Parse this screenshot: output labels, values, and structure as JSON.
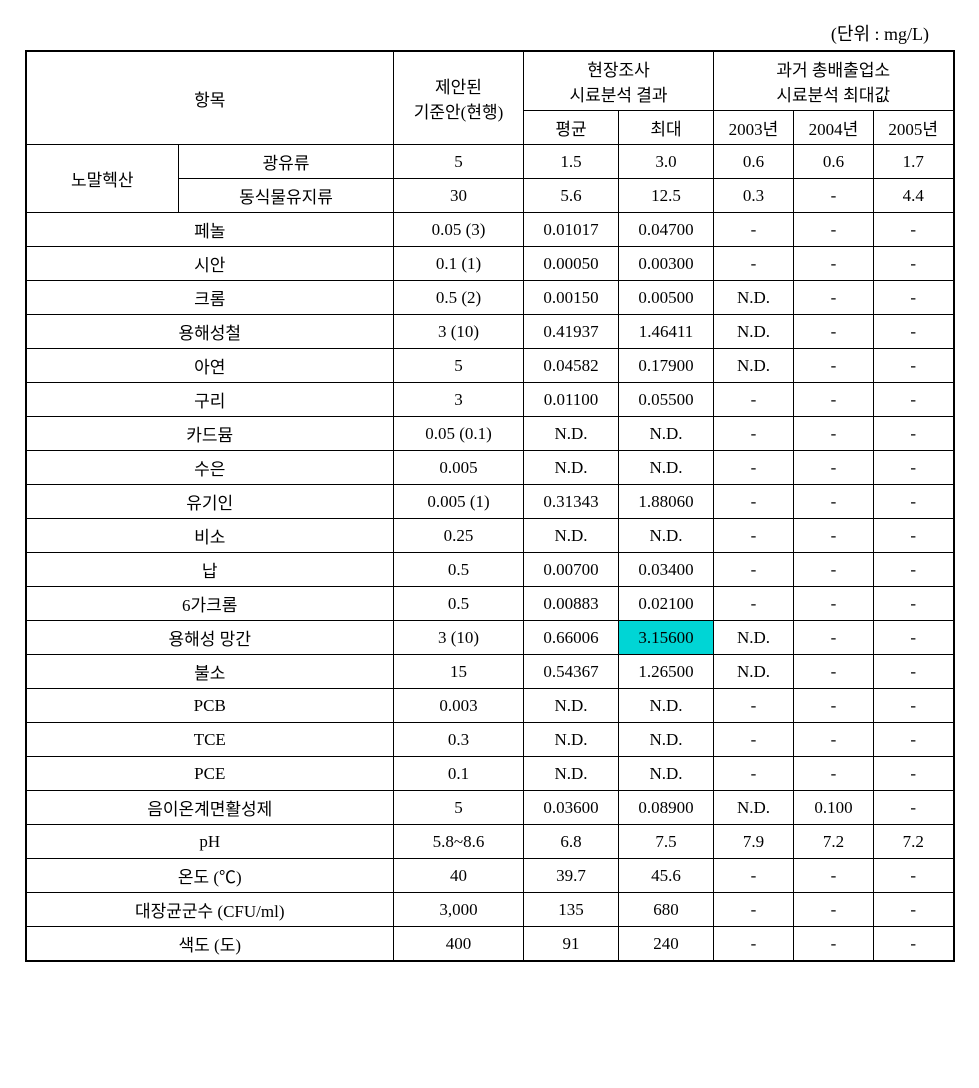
{
  "unit_label": "(단위 : mg/L)",
  "headers": {
    "item": "항목",
    "standard": "제안된\n기준안(현행)",
    "field_survey": "현장조사\n시료분석 결과",
    "avg": "평균",
    "max": "최대",
    "past_max": "과거 총배출업소\n시료분석 최대값",
    "y2003": "2003년",
    "y2004": "2004년",
    "y2005": "2005년"
  },
  "rows": [
    {
      "item_group": "노말헥산",
      "item": "광유류",
      "std": "5",
      "avg": "1.5",
      "max": "3.0",
      "y2003": "0.6",
      "y2004": "0.6",
      "y2005": "1.7",
      "highlight": false,
      "rowspan_group": 2
    },
    {
      "item_group": "",
      "item": "동식물유지류",
      "std": "30",
      "avg": "5.6",
      "max": "12.5",
      "y2003": "0.3",
      "y2004": "-",
      "y2005": "4.4",
      "highlight": false
    },
    {
      "item": "페놀",
      "std": "0.05 (3)",
      "avg": "0.01017",
      "max": "0.04700",
      "y2003": "-",
      "y2004": "-",
      "y2005": "-",
      "highlight": false
    },
    {
      "item": "시안",
      "std": "0.1 (1)",
      "avg": "0.00050",
      "max": "0.00300",
      "y2003": "-",
      "y2004": "-",
      "y2005": "-",
      "highlight": false
    },
    {
      "item": "크롬",
      "std": "0.5 (2)",
      "avg": "0.00150",
      "max": "0.00500",
      "y2003": "N.D.",
      "y2004": "-",
      "y2005": "-",
      "highlight": false
    },
    {
      "item": "용해성철",
      "std": "3 (10)",
      "avg": "0.41937",
      "max": "1.46411",
      "y2003": "N.D.",
      "y2004": "-",
      "y2005": "-",
      "highlight": false
    },
    {
      "item": "아연",
      "std": "5",
      "avg": "0.04582",
      "max": "0.17900",
      "y2003": "N.D.",
      "y2004": "-",
      "y2005": "-",
      "highlight": false
    },
    {
      "item": "구리",
      "std": "3",
      "avg": "0.01100",
      "max": "0.05500",
      "y2003": "-",
      "y2004": "-",
      "y2005": "-",
      "highlight": false
    },
    {
      "item": "카드뮴",
      "std": "0.05 (0.1)",
      "avg": "N.D.",
      "max": "N.D.",
      "y2003": "-",
      "y2004": "-",
      "y2005": "-",
      "highlight": false
    },
    {
      "item": "수은",
      "std": "0.005",
      "avg": "N.D.",
      "max": "N.D.",
      "y2003": "-",
      "y2004": "-",
      "y2005": "-",
      "highlight": false
    },
    {
      "item": "유기인",
      "std": "0.005 (1)",
      "avg": "0.31343",
      "max": "1.88060",
      "y2003": "-",
      "y2004": "-",
      "y2005": "-",
      "highlight": false
    },
    {
      "item": "비소",
      "std": "0.25",
      "avg": "N.D.",
      "max": "N.D.",
      "y2003": "-",
      "y2004": "-",
      "y2005": "-",
      "highlight": false
    },
    {
      "item": "납",
      "std": "0.5",
      "avg": "0.00700",
      "max": "0.03400",
      "y2003": "-",
      "y2004": "-",
      "y2005": "-",
      "highlight": false
    },
    {
      "item": "6가크롬",
      "std": "0.5",
      "avg": "0.00883",
      "max": "0.02100",
      "y2003": "-",
      "y2004": "-",
      "y2005": "-",
      "highlight": false
    },
    {
      "item": "용해성 망간",
      "std": "3 (10)",
      "avg": "0.66006",
      "max": "3.15600",
      "y2003": "N.D.",
      "y2004": "-",
      "y2005": "-",
      "highlight": true
    },
    {
      "item": "불소",
      "std": "15",
      "avg": "0.54367",
      "max": "1.26500",
      "y2003": "N.D.",
      "y2004": "-",
      "y2005": "-",
      "highlight": false
    },
    {
      "item": "PCB",
      "std": "0.003",
      "avg": "N.D.",
      "max": "N.D.",
      "y2003": "-",
      "y2004": "-",
      "y2005": "-",
      "highlight": false
    },
    {
      "item": "TCE",
      "std": "0.3",
      "avg": "N.D.",
      "max": "N.D.",
      "y2003": "-",
      "y2004": "-",
      "y2005": "-",
      "highlight": false
    },
    {
      "item": "PCE",
      "std": "0.1",
      "avg": "N.D.",
      "max": "N.D.",
      "y2003": "-",
      "y2004": "-",
      "y2005": "-",
      "highlight": false
    },
    {
      "item": "음이온계면활성제",
      "std": "5",
      "avg": "0.03600",
      "max": "0.08900",
      "y2003": "N.D.",
      "y2004": "0.100",
      "y2005": "-",
      "highlight": false
    },
    {
      "item": "pH",
      "std": "5.8~8.6",
      "avg": "6.8",
      "max": "7.5",
      "y2003": "7.9",
      "y2004": "7.2",
      "y2005": "7.2",
      "highlight": false
    },
    {
      "item": "온도 (℃)",
      "std": "40",
      "avg": "39.7",
      "max": "45.6",
      "y2003": "-",
      "y2004": "-",
      "y2005": "-",
      "highlight": false
    },
    {
      "item": "대장균군수 (CFU/ml)",
      "std": "3,000",
      "avg": "135",
      "max": "680",
      "y2003": "-",
      "y2004": "-",
      "y2005": "-",
      "highlight": false
    },
    {
      "item": "색도 (도)",
      "std": "400",
      "avg": "91",
      "max": "240",
      "y2003": "-",
      "y2004": "-",
      "y2005": "-",
      "highlight": false
    }
  ],
  "styling": {
    "highlight_color": "#00d5d5",
    "border_color": "#000000",
    "background_color": "#ffffff",
    "font_family": "serif",
    "font_size_cell": 17,
    "font_size_unit": 18
  }
}
